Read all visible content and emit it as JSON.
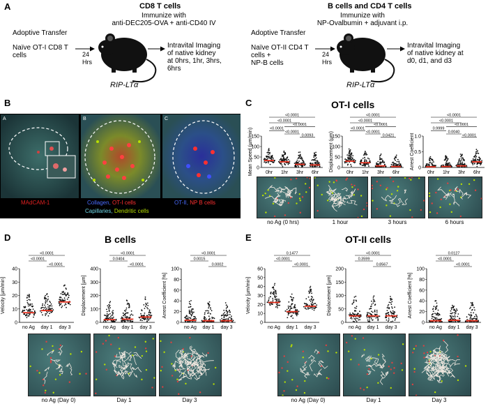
{
  "panelA": {
    "letter": "A",
    "cd8": {
      "title": "CD8 T cells",
      "immunize": "Immunize with\nanti-DEC205-OVA + anti-CD40 IV",
      "adoptive": "Adoptive Transfer",
      "naive": "Naïve OT-I CD8 T\ncells",
      "hrs": "24\nHrs",
      "strain": "RIP-LTα",
      "imaging": "Intravital Imaging\nof native kidney\nat 0hrs, 1hr, 3hrs,\n6hrs"
    },
    "bcd4": {
      "title": "B cells and CD4 T cells",
      "immunize": "Immunize with\nNP-Ovalbumin + adjuvant i.p.",
      "adoptive": "Adoptive Transfer",
      "naive": "Naïve OT-II CD4 T\ncells +\nNP-B cells",
      "hrs": "24\nHrs",
      "strain": "RIP-LTα",
      "imaging": "Intravital Imaging\nof native kidney at\nd0, d1, and d3"
    }
  },
  "panelB": {
    "letter": "B",
    "sub": [
      "A",
      "B",
      "C"
    ],
    "legend1": "MAdCAM-1",
    "legend2a": "Collagen,",
    "legend2b": "OT-I cells",
    "legend3a": "OT-II,",
    "legend3b": "NP B cells",
    "legend4a": "Capillaries,",
    "legend4b": "Dendritic cells"
  },
  "panelC": {
    "letter": "C",
    "title": "OT-I cells",
    "plots": [
      {
        "ylabel": "Mean Speed (µm/min)",
        "yticks": [
          "0",
          "50",
          "100",
          "150"
        ],
        "xticks": [
          "0hr",
          "1hr",
          "3hr",
          "6hr"
        ],
        "pvals": [
          "<0.0001",
          "<0.0001",
          "<0.0001",
          "<0.0001",
          "<0.0001",
          "0.0093"
        ]
      },
      {
        "ylabel": "Displacement (µm)",
        "yticks": [
          "0",
          "50",
          "100",
          "150"
        ],
        "xticks": [
          "0hr",
          "1hr",
          "3hr",
          "6hr"
        ],
        "pvals": [
          "<0.0001",
          "<0.0001",
          "<0.0001",
          "<0.0001",
          "<0.0001",
          "0.0421"
        ]
      },
      {
        "ylabel": "Arrest Coefficient",
        "yticks": [
          "0",
          "0.5",
          "1.0"
        ],
        "xticks": [
          "0hr",
          "1hr",
          "3hr",
          "6hr"
        ],
        "pvals": [
          "<0.0001",
          "<0.0001",
          "<0.0001",
          "0.9999",
          "0.0040",
          "<0.0001"
        ]
      }
    ],
    "captions": [
      "no Ag (0 hrs)",
      "1 hour",
      "3 hours",
      "6 hours"
    ]
  },
  "panelD": {
    "letter": "D",
    "title": "B cells",
    "plots": [
      {
        "ylabel": "Velocity [µm/min]",
        "yticks": [
          "0",
          "10",
          "20",
          "30",
          "40"
        ],
        "xticks": [
          "no Ag",
          "day 1",
          "day 3"
        ],
        "pvals": [
          "<0.0001",
          "<0.0001",
          "<0.0001"
        ]
      },
      {
        "ylabel": "Displacement [µm]",
        "yticks": [
          "0",
          "100",
          "200",
          "300",
          "400"
        ],
        "xticks": [
          "no Ag",
          "day 1",
          "day 3"
        ],
        "pvals": [
          "<0.0001",
          "0.0404",
          "<0.0001"
        ]
      },
      {
        "ylabel": "Arrest Coefficient [%]",
        "yticks": [
          "0",
          "20",
          "40",
          "60",
          "80",
          "100"
        ],
        "xticks": [
          "no Ag",
          "day 1",
          "day 3"
        ],
        "pvals": [
          "<0.0001",
          "0.0015",
          "0.0002"
        ]
      }
    ],
    "captions": [
      "no Ag (Day 0)",
      "Day 1",
      "Day 3"
    ]
  },
  "panelE": {
    "letter": "E",
    "title": "OT-II cells",
    "plots": [
      {
        "ylabel": "Velocity [µm/min]",
        "yticks": [
          "0",
          "10",
          "20",
          "30",
          "40",
          "50",
          "60"
        ],
        "xticks": [
          "no Ag",
          "day 1",
          "day 3"
        ],
        "pvals": [
          "0.1477",
          "<0.0001",
          "<0.0001"
        ]
      },
      {
        "ylabel": "Displacement [µm]",
        "yticks": [
          "0",
          "50",
          "100",
          "150",
          "200"
        ],
        "xticks": [
          "no Ag",
          "day 1",
          "day 3"
        ],
        "pvals": [
          "<0.0001",
          "0.3599",
          "0.8567"
        ]
      },
      {
        "ylabel": "Arrest Coefficient [%]",
        "yticks": [
          "0",
          "20",
          "40",
          "60",
          "80",
          "100"
        ],
        "xticks": [
          "no Ag",
          "day 1",
          "day 3"
        ],
        "pvals": [
          "0.0127",
          "<0.0001",
          "<0.0001"
        ]
      }
    ],
    "captions": [
      "no Ag (Day 0)",
      "Day 1",
      "Day 3"
    ]
  },
  "colors": {
    "mean_line": "#e8301e",
    "dots": "#111111",
    "micro_bg": "#2c4a4e"
  }
}
